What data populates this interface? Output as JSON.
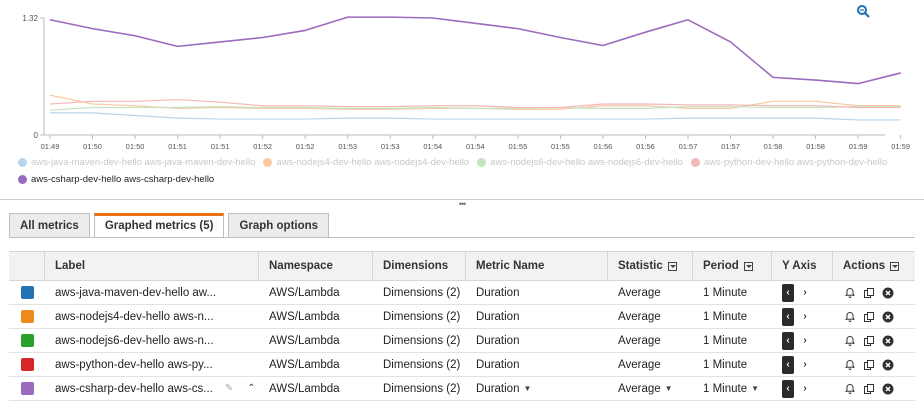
{
  "chart_data": {
    "type": "line",
    "y_ticks": [
      "1.32",
      "0"
    ],
    "ylim": [
      0,
      1.32
    ],
    "x": [
      "01:49",
      "01:50",
      "01:50",
      "01:51",
      "01:51",
      "01:52",
      "01:52",
      "01:53",
      "01:53",
      "01:54",
      "01:54",
      "01:55",
      "01:55",
      "01:56",
      "01:56",
      "01:57",
      "01:57",
      "01:58",
      "01:58",
      "01:59",
      "01:59"
    ],
    "series": [
      {
        "name": "aws-java-maven-dev-hello aws-java-maven-dev-hello",
        "color": "#b8d4ec",
        "faded": true,
        "values": [
          0.25,
          0.25,
          0.22,
          0.19,
          0.18,
          0.18,
          0.18,
          0.19,
          0.19,
          0.18,
          0.18,
          0.18,
          0.18,
          0.18,
          0.18,
          0.19,
          0.19,
          0.19,
          0.19,
          0.17,
          0.17
        ]
      },
      {
        "name": "aws-nodejs4-dev-hello aws-nodejs4-dev-hello",
        "color": "#f7c9a2",
        "faded": true,
        "values": [
          0.45,
          0.35,
          0.33,
          0.3,
          0.31,
          0.3,
          0.3,
          0.29,
          0.29,
          0.3,
          0.3,
          0.29,
          0.29,
          0.33,
          0.33,
          0.3,
          0.3,
          0.38,
          0.38,
          0.33,
          0.33
        ]
      },
      {
        "name": "aws-nodejs6-dev-hello aws-nodejs6-dev-hello",
        "color": "#c6e3c1",
        "faded": true,
        "values": [
          0.28,
          0.31,
          0.31,
          0.31,
          0.32,
          0.31,
          0.31,
          0.3,
          0.3,
          0.31,
          0.3,
          0.3,
          0.31,
          0.3,
          0.3,
          0.32,
          0.32,
          0.31,
          0.31,
          0.32,
          0.32
        ]
      },
      {
        "name": "aws-python-dev-hello aws-python-dev-hello",
        "color": "#f3b8b8",
        "faded": true,
        "values": [
          0.35,
          0.38,
          0.38,
          0.4,
          0.37,
          0.33,
          0.33,
          0.32,
          0.32,
          0.33,
          0.33,
          0.31,
          0.31,
          0.35,
          0.35,
          0.34,
          0.34,
          0.33,
          0.33,
          0.31,
          0.31
        ]
      },
      {
        "name": "aws-csharp-dev-hello aws-csharp-dev-hello",
        "color": "#9b6bbf",
        "faded": false,
        "values": [
          1.3,
          1.2,
          1.12,
          1.0,
          1.05,
          1.1,
          1.18,
          1.33,
          1.33,
          1.32,
          1.26,
          1.2,
          1.1,
          1.01,
          1.16,
          1.3,
          1.05,
          0.65,
          0.62,
          0.58,
          0.7
        ]
      }
    ]
  },
  "tabs": [
    {
      "label": "All metrics",
      "active": false
    },
    {
      "label": "Graphed metrics (5)",
      "active": true
    },
    {
      "label": "Graph options",
      "active": false
    }
  ],
  "table": {
    "headers": {
      "label": "Label",
      "namespace": "Namespace",
      "dimensions": "Dimensions",
      "metric_name": "Metric Name",
      "statistic": "Statistic",
      "period": "Period",
      "y_axis": "Y Axis",
      "actions": "Actions"
    },
    "rows": [
      {
        "color": "#2272b6",
        "label": "aws-java-maven-dev-hello aw...",
        "namespace": "AWS/Lambda",
        "dimensions": "Dimensions (2)",
        "metric": "Duration",
        "statistic": "Average",
        "period": "1 Minute"
      },
      {
        "color": "#f08a1c",
        "label": "aws-nodejs4-dev-hello aws-n...",
        "namespace": "AWS/Lambda",
        "dimensions": "Dimensions (2)",
        "metric": "Duration",
        "statistic": "Average",
        "period": "1 Minute"
      },
      {
        "color": "#2ca02c",
        "label": "aws-nodejs6-dev-hello aws-n...",
        "namespace": "AWS/Lambda",
        "dimensions": "Dimensions (2)",
        "metric": "Duration",
        "statistic": "Average",
        "period": "1 Minute"
      },
      {
        "color": "#d62728",
        "label": "aws-python-dev-hello aws-py...",
        "namespace": "AWS/Lambda",
        "dimensions": "Dimensions (2)",
        "metric": "Duration",
        "statistic": "Average",
        "period": "1 Minute"
      },
      {
        "color": "#9b6bbf",
        "label": "aws-csharp-dev-hello aws-cs...",
        "namespace": "AWS/Lambda",
        "dimensions": "Dimensions (2)",
        "metric": "Duration",
        "statistic": "Average",
        "period": "1 Minute",
        "editing": true
      }
    ]
  },
  "icons": {
    "zoom": "zoom-icon",
    "alarm": "bell-icon",
    "duplicate": "copy-icon",
    "remove": "close-circle-icon"
  }
}
